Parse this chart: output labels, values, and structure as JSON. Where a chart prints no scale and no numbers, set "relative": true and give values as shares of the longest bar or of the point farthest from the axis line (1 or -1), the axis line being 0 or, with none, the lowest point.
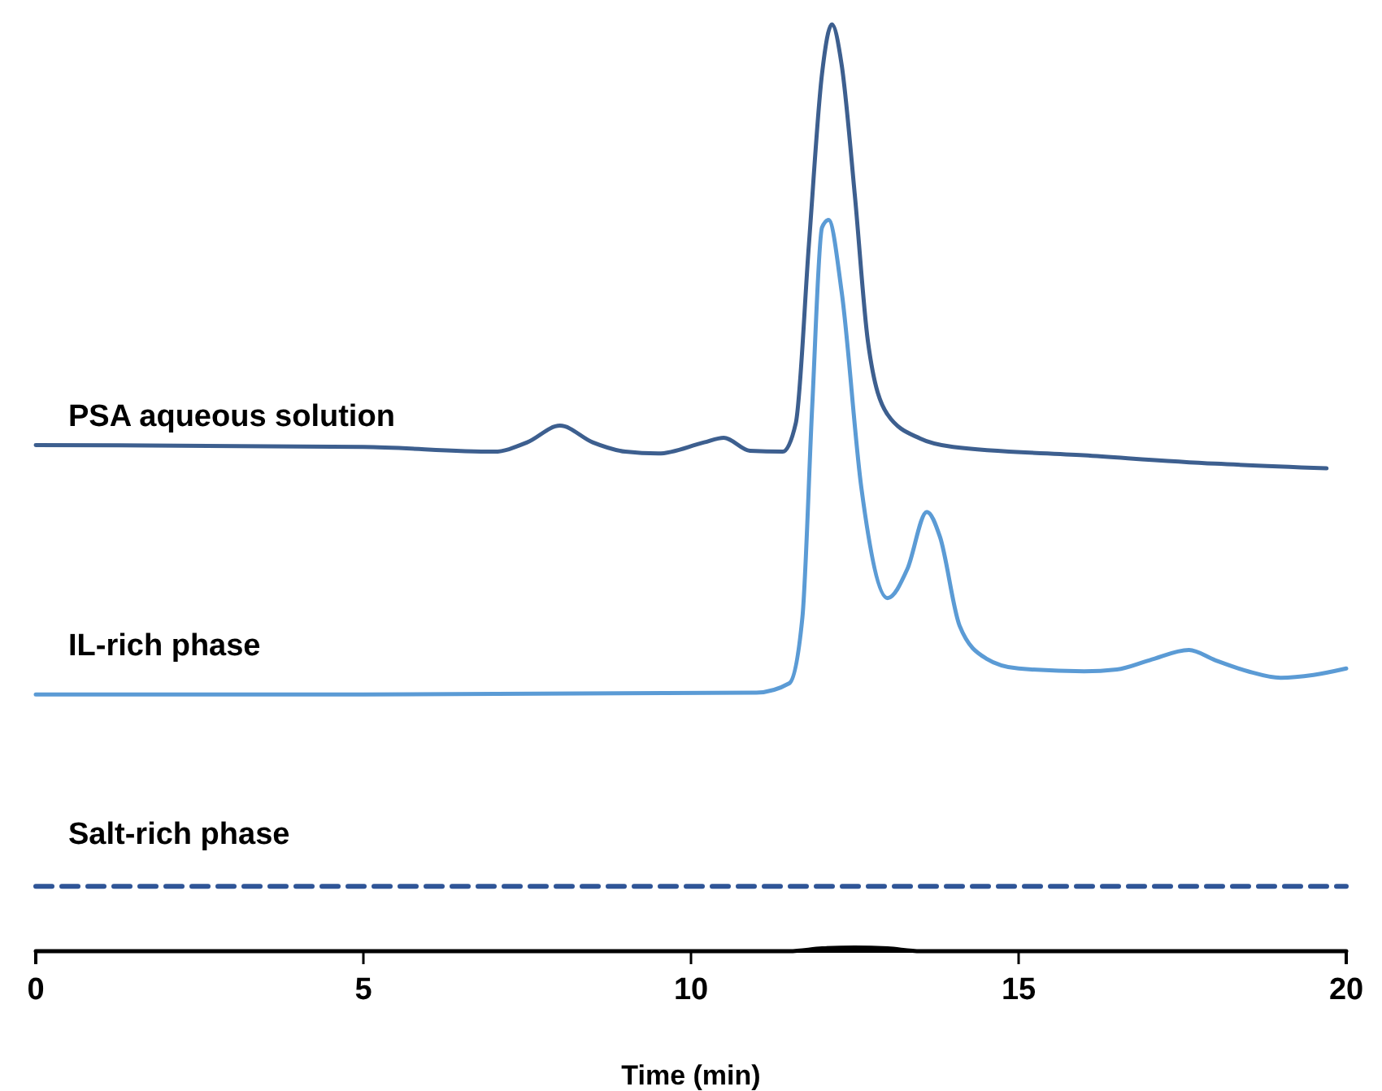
{
  "chart_data": {
    "type": "line",
    "relative": true,
    "xlabel": "Time (min)",
    "xlim": [
      0,
      20
    ],
    "xticks": [
      0,
      5,
      10,
      15,
      20
    ],
    "tick_labels": "x",
    "grid": false,
    "marker": "none",
    "series": [
      {
        "name": "PSA aqueous solution",
        "color": "#3d5f8f",
        "line_style": "solid",
        "x": [
          0,
          5,
          7,
          7.5,
          8,
          8.5,
          9,
          9.5,
          10.2,
          10.5,
          10.9,
          11.4,
          11.6,
          11.8,
          12.0,
          12.15,
          12.3,
          12.5,
          12.7,
          13,
          13.5,
          14,
          16,
          18,
          19.7
        ],
        "values": [
          0.546,
          0.544,
          0.539,
          0.549,
          0.567,
          0.549,
          0.539,
          0.537,
          0.549,
          0.554,
          0.54,
          0.539,
          0.57,
          0.763,
          0.947,
          1.0,
          0.956,
          0.816,
          0.658,
          0.579,
          0.553,
          0.544,
          0.535,
          0.526,
          0.521
        ]
      },
      {
        "name": "IL-rich phase",
        "color": "#5b9bd5",
        "line_style": "solid",
        "x": [
          0,
          5,
          11,
          11.5,
          11.7,
          11.85,
          12.0,
          12.1,
          12.3,
          12.6,
          13,
          13.3,
          13.6,
          13.8,
          14.1,
          14.5,
          15,
          16,
          16.5,
          17,
          17.6,
          18,
          18.5,
          19,
          19.5,
          20
        ],
        "values": [
          0.277,
          0.277,
          0.279,
          0.289,
          0.36,
          0.588,
          0.781,
          0.789,
          0.711,
          0.5,
          0.381,
          0.412,
          0.474,
          0.447,
          0.351,
          0.316,
          0.305,
          0.302,
          0.304,
          0.314,
          0.325,
          0.314,
          0.302,
          0.295,
          0.298,
          0.305
        ]
      },
      {
        "name": "Salt-rich phase",
        "color": "#2f5597",
        "line_style": "dashed",
        "x": [
          0,
          20
        ],
        "values": [
          0.07,
          0.07
        ]
      },
      {
        "color": "#000000",
        "line_style": "solid",
        "x": [
          0,
          11.5,
          12,
          12.5,
          13,
          13.5,
          20
        ],
        "values": [
          0,
          0,
          0.003,
          0.004,
          0.003,
          0,
          0
        ]
      }
    ]
  }
}
